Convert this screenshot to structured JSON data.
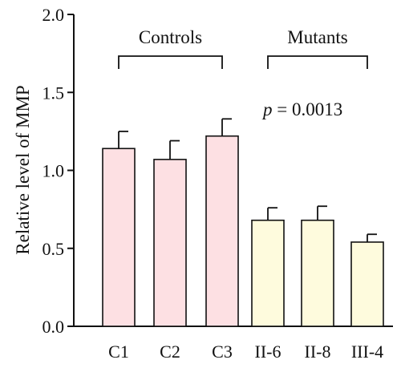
{
  "chart_data": {
    "type": "bar",
    "categories": [
      "C1",
      "C2",
      "C3",
      "II-6",
      "II-8",
      "III-4"
    ],
    "values": [
      1.14,
      1.07,
      1.22,
      0.68,
      0.68,
      0.54
    ],
    "errors": [
      0.11,
      0.12,
      0.11,
      0.08,
      0.09,
      0.05
    ],
    "groups": [
      {
        "label": "Controls",
        "members": [
          "C1",
          "C2",
          "C3"
        ],
        "color": "#fde0e3"
      },
      {
        "label": "Mutants",
        "members": [
          "II-6",
          "II-8",
          "III-4"
        ],
        "color": "#fefbdd"
      }
    ],
    "title": "",
    "xlabel": "",
    "ylabel": "Relative level of MMP",
    "ylim": [
      0,
      2.0
    ],
    "yticks": [
      "0.0",
      "0.5",
      "1.0",
      "1.5",
      "2.0"
    ],
    "annotation": {
      "p_symbol": "p",
      "p_value_text": " = 0.0013"
    },
    "grid": false,
    "legend": "none"
  }
}
